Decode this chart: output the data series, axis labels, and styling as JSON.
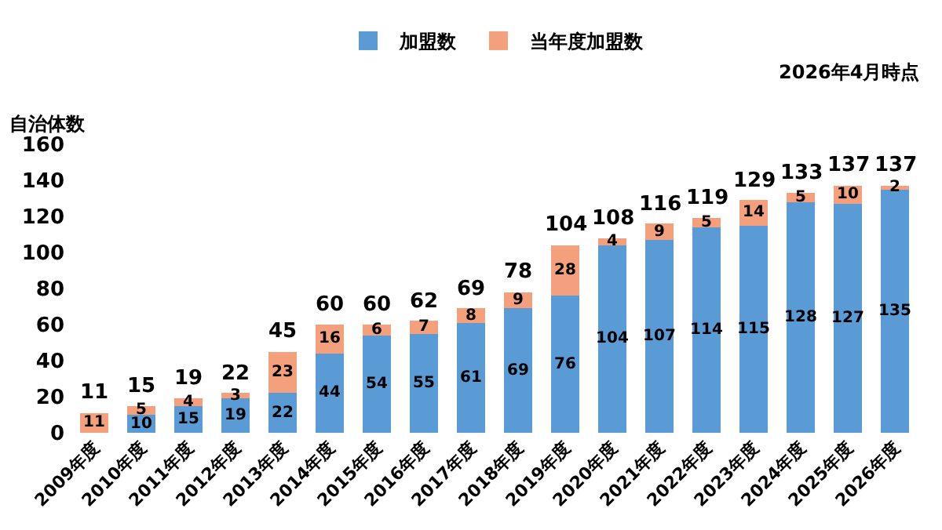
{
  "chart_data": {
    "type": "bar",
    "stacked": true,
    "ylabel": "自治体数",
    "annotations": [
      "2026年4月時点"
    ],
    "categories": [
      "2009年度",
      "2010年度",
      "2011年度",
      "2012年度",
      "2013年度",
      "2014年度",
      "2015年度",
      "2016年度",
      "2017年度",
      "2018年度",
      "2019年度",
      "2020年度",
      "2021年度",
      "2022年度",
      "2023年度",
      "2024年度",
      "2025年度",
      "2026年度"
    ],
    "series": [
      {
        "name": "加盟数",
        "color": "#5b9bd5",
        "values": [
          null,
          10,
          15,
          19,
          22,
          44,
          54,
          55,
          61,
          69,
          76,
          104,
          107,
          114,
          115,
          128,
          127,
          135
        ]
      },
      {
        "name": "当年度加盟数",
        "color": "#f4a07c",
        "values": [
          11,
          5,
          4,
          3,
          23,
          16,
          6,
          7,
          8,
          9,
          28,
          4,
          9,
          5,
          14,
          5,
          10,
          2
        ]
      }
    ],
    "totals": [
      "11",
      "15",
      "19",
      "22",
      "45",
      "60",
      "60",
      "62",
      "69",
      "78",
      "104",
      "108",
      "116",
      "119",
      "129",
      "133",
      "137",
      "137"
    ],
    "data_labels": true,
    "ylim": [
      0,
      160
    ],
    "yticks": [
      0,
      20,
      40,
      60,
      80,
      100,
      120,
      140,
      160
    ],
    "grid": false,
    "legend": "top"
  }
}
